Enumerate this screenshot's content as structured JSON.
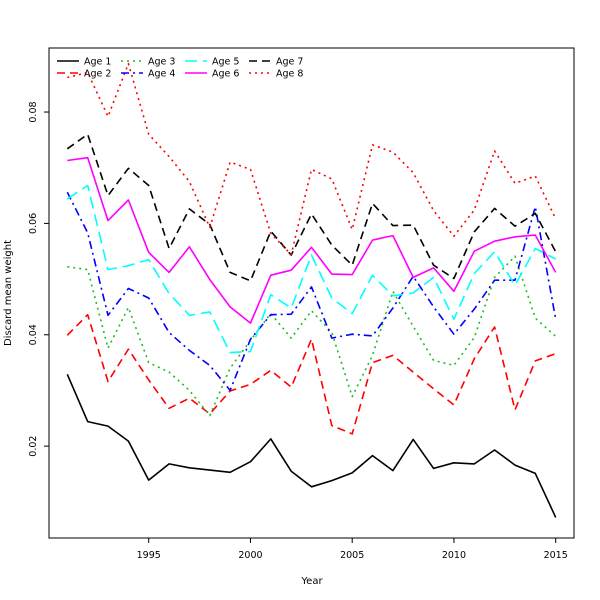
{
  "chart_data": {
    "type": "line",
    "title": "",
    "xlabel": "Year",
    "ylabel": "Discard mean weight",
    "xlim": [
      1990.1,
      2015.9
    ],
    "ylim": [
      0.0035,
      0.0915
    ],
    "xticks": [
      1995,
      2000,
      2005,
      2010,
      2015
    ],
    "xtick_labels": [
      "1995",
      "2000",
      "2005",
      "2010",
      "2015"
    ],
    "yticks": [
      0.02,
      0.04,
      0.06,
      0.08
    ],
    "ytick_labels": [
      "0.02",
      "0.04",
      "0.06",
      "0.08"
    ],
    "legend_position": "top-left",
    "grid": false,
    "x": [
      1991,
      1992,
      1993,
      1994,
      1995,
      1996,
      1997,
      1998,
      1999,
      2000,
      2001,
      2002,
      2003,
      2004,
      2005,
      2006,
      2007,
      2008,
      2009,
      2010,
      2011,
      2012,
      2013,
      2014,
      2015
    ],
    "series": [
      {
        "name": "Age 1",
        "color": "#000000",
        "dash": "solid",
        "values": [
          0.0329,
          0.0244,
          0.0236,
          0.0209,
          0.0139,
          0.0168,
          0.0161,
          0.0157,
          0.0153,
          0.0172,
          0.0213,
          0.0155,
          0.0127,
          0.0138,
          0.0152,
          0.0183,
          0.0156,
          0.0212,
          0.016,
          0.017,
          0.0168,
          0.0193,
          0.0166,
          0.0151,
          0.0072
        ]
      },
      {
        "name": "Age 2",
        "color": "#ff0000",
        "dash": "dashed",
        "values": [
          0.0399,
          0.0436,
          0.0316,
          0.0374,
          0.0319,
          0.0268,
          0.0286,
          0.0258,
          0.0299,
          0.0311,
          0.0336,
          0.0306,
          0.0392,
          0.0237,
          0.0222,
          0.035,
          0.0363,
          0.0333,
          0.0303,
          0.0274,
          0.0357,
          0.0414,
          0.0265,
          0.0353,
          0.0366
        ]
      },
      {
        "name": "Age 3",
        "color": "#22bb22",
        "dash": "dotted",
        "values": [
          0.0522,
          0.0517,
          0.0376,
          0.0449,
          0.035,
          0.0333,
          0.03,
          0.0255,
          0.034,
          0.039,
          0.0438,
          0.0394,
          0.0443,
          0.0404,
          0.0289,
          0.0363,
          0.0478,
          0.0415,
          0.0354,
          0.0345,
          0.0395,
          0.0503,
          0.0541,
          0.043,
          0.0397
        ]
      },
      {
        "name": "Age 4",
        "color": "#0000ff",
        "dash": "dashdot",
        "values": [
          0.0656,
          0.0583,
          0.0435,
          0.0483,
          0.0466,
          0.0404,
          0.0372,
          0.0345,
          0.03,
          0.0392,
          0.0436,
          0.0437,
          0.0486,
          0.0394,
          0.0401,
          0.0398,
          0.0448,
          0.0505,
          0.045,
          0.0401,
          0.0446,
          0.0498,
          0.0498,
          0.063,
          0.0428
        ]
      },
      {
        "name": "Age 5",
        "color": "#00ffff",
        "dash": "longdash",
        "values": [
          0.0644,
          0.0668,
          0.0517,
          0.0524,
          0.0535,
          0.0474,
          0.0435,
          0.0441,
          0.0368,
          0.037,
          0.0472,
          0.0448,
          0.0543,
          0.0466,
          0.0438,
          0.0507,
          0.047,
          0.0475,
          0.0503,
          0.0428,
          0.051,
          0.0549,
          0.0489,
          0.0555,
          0.0536
        ]
      },
      {
        "name": "Age 6",
        "color": "#ff00ff",
        "dash": "solid",
        "values": [
          0.0713,
          0.0718,
          0.0605,
          0.0642,
          0.0548,
          0.0512,
          0.0558,
          0.0499,
          0.045,
          0.0421,
          0.0507,
          0.0516,
          0.0557,
          0.0509,
          0.0508,
          0.057,
          0.0578,
          0.0503,
          0.052,
          0.0478,
          0.055,
          0.0568,
          0.0576,
          0.0579,
          0.0512
        ]
      },
      {
        "name": "Age 7",
        "color": "#000000",
        "dash": "dashed",
        "values": [
          0.0734,
          0.076,
          0.065,
          0.0699,
          0.0668,
          0.0555,
          0.0626,
          0.0598,
          0.0512,
          0.0497,
          0.0586,
          0.0543,
          0.0617,
          0.0561,
          0.0525,
          0.0636,
          0.0596,
          0.0597,
          0.0525,
          0.0501,
          0.0585,
          0.0627,
          0.0595,
          0.0618,
          0.0549
        ]
      },
      {
        "name": "Age 8",
        "color": "#ff0000",
        "dash": "dotted",
        "values": [
          0.0862,
          0.0871,
          0.0792,
          0.0887,
          0.076,
          0.072,
          0.0675,
          0.0593,
          0.071,
          0.0697,
          0.0582,
          0.0544,
          0.0697,
          0.068,
          0.0589,
          0.0741,
          0.0728,
          0.0691,
          0.0623,
          0.0577,
          0.0624,
          0.073,
          0.0672,
          0.0685,
          0.0608
        ]
      }
    ]
  }
}
